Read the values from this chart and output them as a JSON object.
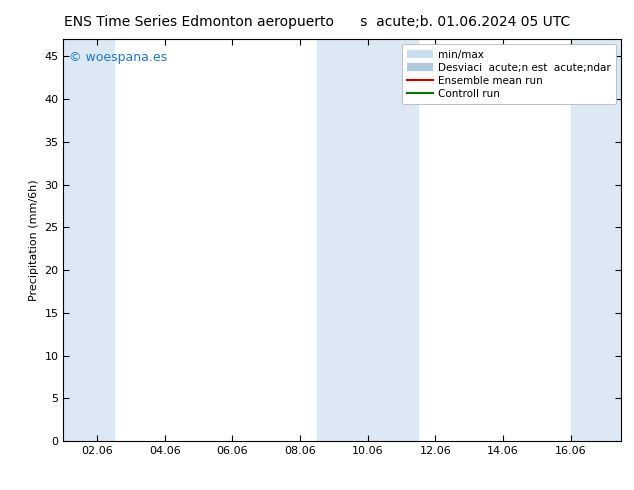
{
  "title_left": "ENS Time Series Edmonton aeropuerto",
  "title_right": "s  acute;b. 01.06.2024 05 UTC",
  "ylabel": "Precipitation (mm/6h)",
  "ylim": [
    0,
    47
  ],
  "yticks": [
    0,
    5,
    10,
    15,
    20,
    25,
    30,
    35,
    40,
    45
  ],
  "xtick_labels": [
    "02.06",
    "04.06",
    "06.06",
    "08.06",
    "10.06",
    "12.06",
    "14.06",
    "16.06"
  ],
  "x_dates": [
    1,
    3,
    5,
    7,
    9,
    11,
    13,
    15
  ],
  "x_min": 0.0,
  "x_max": 16.5,
  "shaded_bands": [
    {
      "x_start": 0.0,
      "x_end": 1.5
    },
    {
      "x_start": 7.5,
      "x_end": 9.5
    },
    {
      "x_start": 9.5,
      "x_end": 10.5
    },
    {
      "x_start": 15.0,
      "x_end": 16.5
    }
  ],
  "band_color": "#dce9f5",
  "background_color": "#ffffff",
  "watermark": "© woespana.es",
  "watermark_color": "#2277cc",
  "legend_label_minmax": "min/max",
  "legend_label_std": "Desviaci  acute;n est  acute;ndar",
  "legend_label_mean": "Ensemble mean run",
  "legend_label_ctrl": "Controll run",
  "color_minmax": "#c8dff0",
  "color_std": "#b0c8dc",
  "color_mean": "#cc0000",
  "color_ctrl": "#007700",
  "tick_color": "#000000",
  "spine_color": "#000000",
  "fontsize_title": 10,
  "fontsize_axis": 8,
  "fontsize_legend": 7.5,
  "fontsize_watermark": 9
}
